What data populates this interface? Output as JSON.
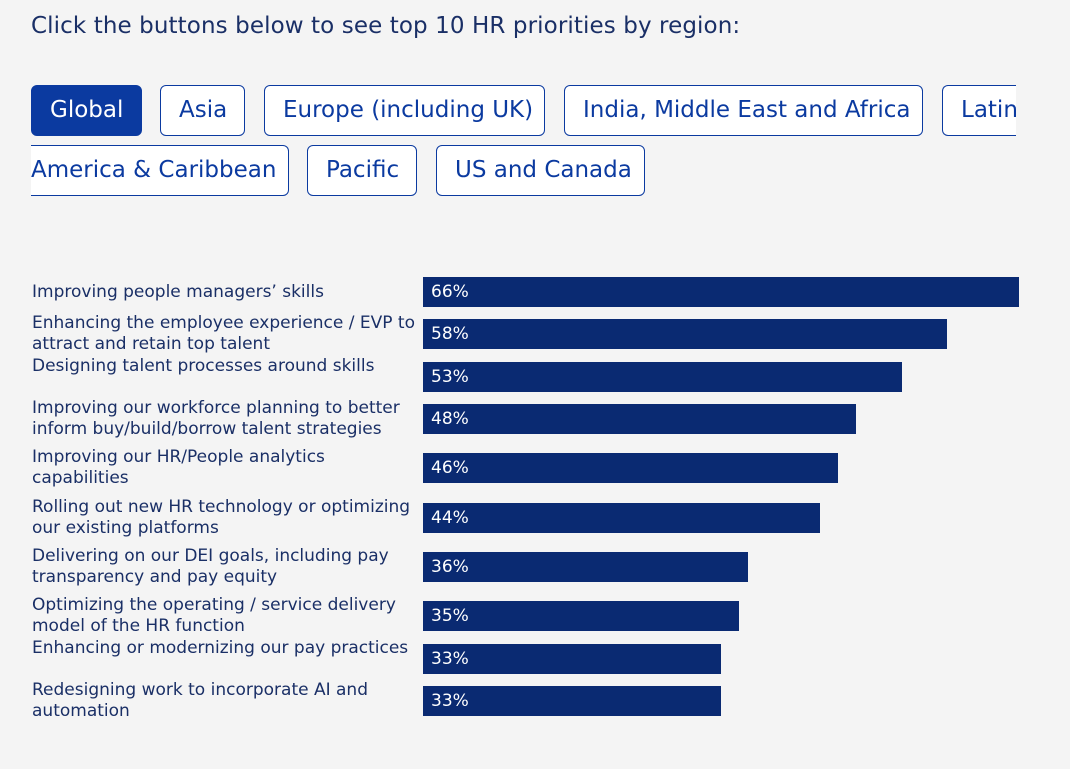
{
  "intro_text": "Click the buttons below to see top 10 HR priorities by region:",
  "tabs": [
    {
      "label": "Global",
      "active": true
    },
    {
      "label": "Asia",
      "active": false
    },
    {
      "label": "Europe (including UK)",
      "active": false
    },
    {
      "label": "India, Middle East and Africa",
      "active": false
    },
    {
      "label": "Latin",
      "active": false
    },
    {
      "label": "America & Caribbean",
      "active": false
    },
    {
      "label": "Pacific",
      "active": false
    },
    {
      "label": "US and Canada",
      "active": false
    }
  ],
  "colors": {
    "accent": "#0b3aa0",
    "bar": "#0a2a72",
    "background": "#f4f4f4"
  },
  "chart_data": {
    "type": "bar",
    "orientation": "horizontal",
    "categories": [
      "Improving people managers’ skills",
      "Enhancing the employee experience / EVP to attract and retain top talent",
      "Designing talent processes around skills",
      "Improving our workforce planning to better inform buy/build/borrow talent strategies",
      "Improving our HR/People analytics capabilities",
      "Rolling out new HR technology or optimizing our existing platforms",
      "Delivering on our DEI goals, including pay transparency and pay equity",
      "Optimizing the operating / service delivery model of the HR function",
      "Enhancing or modernizing our pay practices",
      "Redesigning work to incorporate AI and automation"
    ],
    "values": [
      66,
      58,
      53,
      48,
      46,
      44,
      36,
      35,
      33,
      33
    ],
    "value_labels": [
      "66%",
      "58%",
      "53%",
      "48%",
      "46%",
      "44%",
      "36%",
      "35%",
      "33%",
      "33%"
    ],
    "xlim": [
      0,
      66
    ],
    "grid": false,
    "legend": "none"
  }
}
